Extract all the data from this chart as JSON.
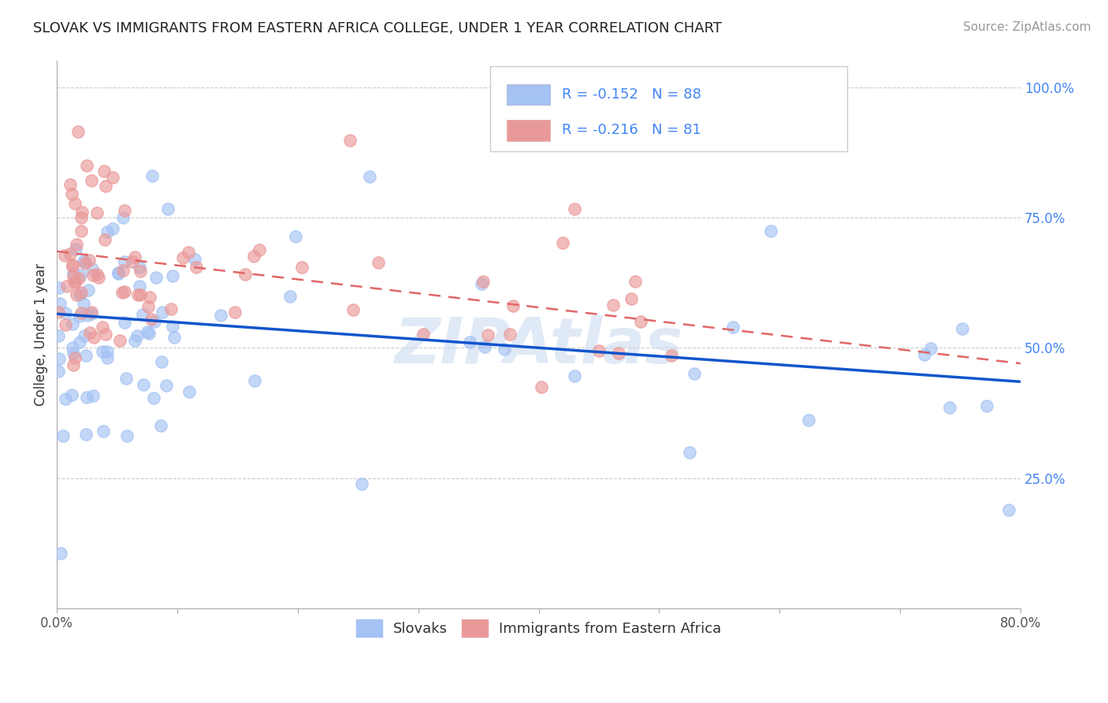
{
  "title": "SLOVAK VS IMMIGRANTS FROM EASTERN AFRICA COLLEGE, UNDER 1 YEAR CORRELATION CHART",
  "source": "Source: ZipAtlas.com",
  "ylabel": "College, Under 1 year",
  "xlim": [
    0.0,
    0.8
  ],
  "ylim": [
    0.0,
    1.05
  ],
  "xtick_positions": [
    0.0,
    0.1,
    0.2,
    0.3,
    0.4,
    0.5,
    0.6,
    0.7,
    0.8
  ],
  "xticklabels": [
    "0.0%",
    "",
    "",
    "",
    "",
    "",
    "",
    "",
    "80.0%"
  ],
  "ytick_positions": [
    0.25,
    0.5,
    0.75,
    1.0
  ],
  "ytick_labels": [
    "25.0%",
    "50.0%",
    "75.0%",
    "100.0%"
  ],
  "blue_color": "#a4c2f4",
  "pink_color": "#ea9999",
  "blue_line_color": "#1155cc",
  "pink_line_color": "#e06666",
  "legend_R1": "-0.152",
  "legend_N1": "88",
  "legend_R2": "-0.216",
  "legend_N2": "81",
  "legend_label1": "Slovaks",
  "legend_label2": "Immigrants from Eastern Africa",
  "blue_line_y0": 0.565,
  "blue_line_y1": 0.435,
  "pink_line_y0": 0.685,
  "pink_line_y1": 0.47,
  "watermark": "ZIPAtlas"
}
